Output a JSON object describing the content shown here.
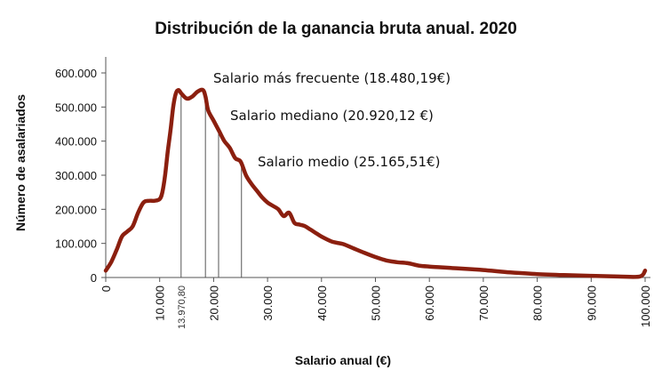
{
  "colors": {
    "curve": "#8b1f0f",
    "axis": "#555555",
    "marker": "#555555",
    "text": "#111111"
  },
  "chart_data": {
    "type": "line",
    "title": "Distribución de la ganancia bruta anual. 2020",
    "xlabel": "Salario anual (€)",
    "ylabel": "Número de asalariados",
    "xlim": [
      0,
      100000
    ],
    "ylim": [
      0,
      600000
    ],
    "x_ticks": [
      0,
      10000,
      20000,
      30000,
      40000,
      50000,
      60000,
      70000,
      80000,
      90000,
      100000
    ],
    "x_tick_labels": [
      "0",
      "10.000",
      "20.000",
      "30.000",
      "40.000",
      "50.000",
      "60.000",
      "70.000",
      "80.000",
      "90.000",
      "100.000"
    ],
    "y_ticks": [
      0,
      100000,
      200000,
      300000,
      400000,
      500000,
      600000
    ],
    "y_tick_labels": [
      "0",
      "100.000",
      "200.000",
      "300.000",
      "400.000",
      "500.000",
      "600.000"
    ],
    "grid": false,
    "legend": "none",
    "series": [
      {
        "x": [
          0,
          1000,
          2000,
          3000,
          4000,
          5000,
          6000,
          7000,
          8000,
          9000,
          10000,
          10500,
          11000,
          11500,
          12000,
          12500,
          13000,
          13500,
          14000,
          15000,
          16000,
          17000,
          18000,
          18500,
          19000,
          20000,
          21000,
          22000,
          23000,
          24000,
          25000,
          26000,
          27000,
          28000,
          29000,
          30000,
          31000,
          32000,
          33000,
          34000,
          35000,
          36000,
          37000,
          38000,
          39000,
          40000,
          42000,
          44000,
          46000,
          48000,
          50000,
          52000,
          54000,
          56000,
          58000,
          60000,
          62000,
          64000,
          66000,
          68000,
          70000,
          75000,
          80000,
          85000,
          90000,
          95000,
          99000,
          100000
        ],
        "y": [
          20000,
          45000,
          80000,
          120000,
          135000,
          150000,
          190000,
          220000,
          225000,
          225000,
          230000,
          250000,
          300000,
          370000,
          430000,
          500000,
          540000,
          550000,
          540000,
          525000,
          530000,
          545000,
          550000,
          530000,
          490000,
          460000,
          430000,
          400000,
          380000,
          350000,
          340000,
          300000,
          275000,
          255000,
          235000,
          220000,
          210000,
          200000,
          180000,
          190000,
          160000,
          155000,
          150000,
          140000,
          130000,
          120000,
          105000,
          98000,
          85000,
          72000,
          60000,
          50000,
          45000,
          42000,
          35000,
          32000,
          30000,
          28000,
          26000,
          24000,
          22000,
          15000,
          10000,
          7000,
          5000,
          3000,
          3000,
          20000
        ]
      }
    ],
    "markers": [
      {
        "x": 13970.8,
        "label": "13.970,80"
      },
      {
        "x": 18480.19
      },
      {
        "x": 20920.12
      },
      {
        "x": 25165.51
      }
    ],
    "annotations": [
      "Salario más frecuente (18.480,19€)",
      "Salario mediano (20.920,12 €)",
      "Salario medio (25.165,51€)"
    ]
  }
}
